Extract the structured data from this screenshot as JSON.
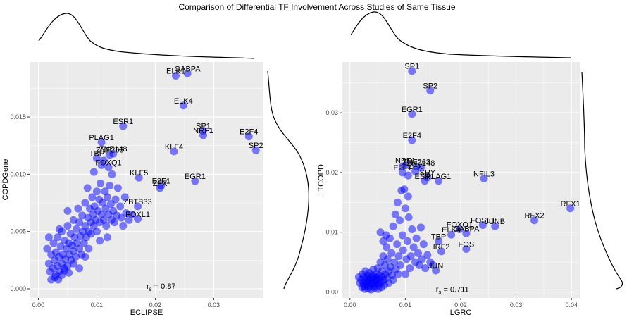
{
  "title": "Comparison of Differential TF Involvement Across Studies of Same Tissue",
  "colors": {
    "panel": "#ebebeb",
    "grid": "#ffffff",
    "point": "#0000ff"
  },
  "chart_data": [
    {
      "type": "scatter",
      "xlabel": "ECLIPSE",
      "ylabel": "COPDGene",
      "xlim": [
        -0.0015,
        0.0385
      ],
      "ylim": [
        -0.0008,
        0.0198
      ],
      "xticks": [
        0.0,
        0.01,
        0.02,
        0.03
      ],
      "xtick_labels": [
        "0.00",
        "0.01",
        "0.02",
        "0.03"
      ],
      "yticks": [
        0.0,
        0.005,
        0.01,
        0.015
      ],
      "ytick_labels": [
        "0.000",
        "0.005",
        "0.010",
        "0.015"
      ],
      "grid": true,
      "marginal_density": true,
      "annotation": {
        "prefix": "r",
        "subscript": "s",
        "text": " = 0.87",
        "x": 0.021,
        "y": 0.0
      },
      "labeled_points": [
        {
          "label": "GABPA",
          "x": 0.0255,
          "y": 0.0188
        },
        {
          "label": "ELK1",
          "x": 0.0235,
          "y": 0.0186
        },
        {
          "label": "ELK4",
          "x": 0.0248,
          "y": 0.016
        },
        {
          "label": "ESR1",
          "x": 0.0145,
          "y": 0.0142
        },
        {
          "label": "SP1",
          "x": 0.0282,
          "y": 0.0138
        },
        {
          "label": "NRF1",
          "x": 0.0282,
          "y": 0.0134
        },
        {
          "label": "E2F4",
          "x": 0.036,
          "y": 0.0133
        },
        {
          "label": "SP2",
          "x": 0.0372,
          "y": 0.0121
        },
        {
          "label": "KLF4",
          "x": 0.0232,
          "y": 0.012
        },
        {
          "label": "PLAG1",
          "x": 0.0108,
          "y": 0.0128
        },
        {
          "label": "ZNF263",
          "x": 0.0122,
          "y": 0.0117
        },
        {
          "label": "ZNF148",
          "x": 0.0128,
          "y": 0.0118
        },
        {
          "label": "TBP",
          "x": 0.01,
          "y": 0.0114
        },
        {
          "label": "FOXQ1",
          "x": 0.012,
          "y": 0.0106
        },
        {
          "label": "KLF5",
          "x": 0.0172,
          "y": 0.0097
        },
        {
          "label": "E2F1",
          "x": 0.021,
          "y": 0.009
        },
        {
          "label": "ZFX",
          "x": 0.0208,
          "y": 0.0088
        },
        {
          "label": "EGR1",
          "x": 0.0268,
          "y": 0.0094
        },
        {
          "label": "ZBTB33",
          "x": 0.017,
          "y": 0.0072
        },
        {
          "label": "FOXL1",
          "x": 0.017,
          "y": 0.0061
        }
      ],
      "other_points": [
        [
          0.0015,
          0.0035
        ],
        [
          0.0018,
          0.0022
        ],
        [
          0.002,
          0.0015
        ],
        [
          0.0022,
          0.003
        ],
        [
          0.0025,
          0.0018
        ],
        [
          0.0026,
          0.004
        ],
        [
          0.0028,
          0.0025
        ],
        [
          0.003,
          0.0012
        ],
        [
          0.003,
          0.0032
        ],
        [
          0.0032,
          0.002
        ],
        [
          0.0033,
          0.0045
        ],
        [
          0.0035,
          0.0028
        ],
        [
          0.0036,
          0.0015
        ],
        [
          0.0038,
          0.0037
        ],
        [
          0.004,
          0.0022
        ],
        [
          0.004,
          0.005
        ],
        [
          0.0042,
          0.003
        ],
        [
          0.0044,
          0.0018
        ],
        [
          0.0045,
          0.0042
        ],
        [
          0.0046,
          0.0026
        ],
        [
          0.0048,
          0.0035
        ],
        [
          0.005,
          0.0055
        ],
        [
          0.005,
          0.002
        ],
        [
          0.0052,
          0.004
        ],
        [
          0.0053,
          0.003
        ],
        [
          0.0055,
          0.0048
        ],
        [
          0.0056,
          0.0025
        ],
        [
          0.0058,
          0.0038
        ],
        [
          0.006,
          0.006
        ],
        [
          0.006,
          0.0033
        ],
        [
          0.0062,
          0.0045
        ],
        [
          0.0064,
          0.0028
        ],
        [
          0.0065,
          0.0052
        ],
        [
          0.0066,
          0.004
        ],
        [
          0.0068,
          0.007
        ],
        [
          0.007,
          0.0035
        ],
        [
          0.007,
          0.0058
        ],
        [
          0.0072,
          0.0046
        ],
        [
          0.0074,
          0.003
        ],
        [
          0.0075,
          0.0064
        ],
        [
          0.0076,
          0.005
        ],
        [
          0.0078,
          0.004
        ],
        [
          0.008,
          0.0075
        ],
        [
          0.008,
          0.0055
        ],
        [
          0.0082,
          0.0045
        ],
        [
          0.0084,
          0.0088
        ],
        [
          0.0085,
          0.0062
        ],
        [
          0.0086,
          0.005
        ],
        [
          0.0088,
          0.007
        ],
        [
          0.009,
          0.0058
        ],
        [
          0.009,
          0.0048
        ],
        [
          0.0092,
          0.008
        ],
        [
          0.0094,
          0.0065
        ],
        [
          0.0095,
          0.0055
        ],
        [
          0.0096,
          0.0072
        ],
        [
          0.0098,
          0.006
        ],
        [
          0.01,
          0.0085
        ],
        [
          0.01,
          0.005
        ],
        [
          0.0102,
          0.0068
        ],
        [
          0.0104,
          0.0078
        ],
        [
          0.0105,
          0.0058
        ],
        [
          0.0106,
          0.0092
        ],
        [
          0.0108,
          0.0065
        ],
        [
          0.011,
          0.0075
        ],
        [
          0.0112,
          0.006
        ],
        [
          0.0114,
          0.0085
        ],
        [
          0.0115,
          0.007
        ],
        [
          0.0116,
          0.0055
        ],
        [
          0.0118,
          0.008
        ],
        [
          0.012,
          0.0065
        ],
        [
          0.0122,
          0.009
        ],
        [
          0.0124,
          0.0074
        ],
        [
          0.0125,
          0.006
        ],
        [
          0.0126,
          0.01
        ],
        [
          0.0128,
          0.0068
        ],
        [
          0.013,
          0.0058
        ],
        [
          0.0132,
          0.0078
        ],
        [
          0.0134,
          0.0064
        ],
        [
          0.0136,
          0.0088
        ],
        [
          0.014,
          0.0072
        ],
        [
          0.0142,
          0.0062
        ],
        [
          0.0145,
          0.0055
        ],
        [
          0.0148,
          0.008
        ],
        [
          0.015,
          0.0066
        ],
        [
          0.0155,
          0.006
        ],
        [
          0.016,
          0.0065
        ],
        [
          0.0028,
          0.001
        ],
        [
          0.0034,
          0.0008
        ],
        [
          0.004,
          0.0012
        ],
        [
          0.0045,
          0.0016
        ],
        [
          0.0022,
          0.0008
        ],
        [
          0.0052,
          0.0014
        ],
        [
          0.0036,
          0.0052
        ],
        [
          0.006,
          0.0022
        ],
        [
          0.007,
          0.0018
        ],
        [
          0.0018,
          0.0045
        ],
        [
          0.005,
          0.0068
        ],
        [
          0.008,
          0.0028
        ],
        [
          0.0086,
          0.0035
        ],
        [
          0.0105,
          0.0042
        ],
        [
          0.0118,
          0.0045
        ],
        [
          0.0095,
          0.0102
        ],
        [
          0.0108,
          0.0108
        ],
        [
          0.0112,
          0.0112
        ]
      ]
    },
    {
      "type": "scatter",
      "xlabel": "LGRC",
      "ylabel": "LTCOPD",
      "xlim": [
        -0.0015,
        0.0415
      ],
      "ylim": [
        -0.001,
        0.0385
      ],
      "xticks": [
        0.0,
        0.01,
        0.02,
        0.03,
        0.04
      ],
      "xtick_labels": [
        "0.00",
        "0.01",
        "0.02",
        "0.03",
        "0.04"
      ],
      "yticks": [
        0.0,
        0.01,
        0.02,
        0.03
      ],
      "ytick_labels": [
        "0.00",
        "0.01",
        "0.02",
        "0.03"
      ],
      "grid": true,
      "marginal_density": true,
      "annotation": {
        "prefix": "r",
        "subscript": "s",
        "text": " = 0.711",
        "x": 0.0185,
        "y": 0.0
      },
      "labeled_points": [
        {
          "label": "SP1",
          "x": 0.0112,
          "y": 0.037
        },
        {
          "label": "SP2",
          "x": 0.0145,
          "y": 0.0337
        },
        {
          "label": "EGR1",
          "x": 0.0112,
          "y": 0.0298
        },
        {
          "label": "E2F4",
          "x": 0.0112,
          "y": 0.0254
        },
        {
          "label": "NRF1",
          "x": 0.01,
          "y": 0.0212
        },
        {
          "label": "ZNF263",
          "x": 0.012,
          "y": 0.021
        },
        {
          "label": "ZNF148",
          "x": 0.0128,
          "y": 0.0208
        },
        {
          "label": "ZFX",
          "x": 0.0118,
          "y": 0.0202
        },
        {
          "label": "E2F1",
          "x": 0.0095,
          "y": 0.02
        },
        {
          "label": "SRY",
          "x": 0.014,
          "y": 0.0192
        },
        {
          "label": "ESR1",
          "x": 0.0135,
          "y": 0.0186
        },
        {
          "label": "PLAG1",
          "x": 0.016,
          "y": 0.0186
        },
        {
          "label": "NFIL3",
          "x": 0.0242,
          "y": 0.019
        },
        {
          "label": "RFX1",
          "x": 0.0398,
          "y": 0.014
        },
        {
          "label": "RFX2",
          "x": 0.0333,
          "y": 0.012
        },
        {
          "label": "FOSL1",
          "x": 0.024,
          "y": 0.0112
        },
        {
          "label": "JUNB",
          "x": 0.0262,
          "y": 0.011
        },
        {
          "label": "FOXQ1",
          "x": 0.0198,
          "y": 0.0105
        },
        {
          "label": "ELK4",
          "x": 0.0183,
          "y": 0.0096
        },
        {
          "label": "GABPA",
          "x": 0.021,
          "y": 0.0098
        },
        {
          "label": "TBP",
          "x": 0.016,
          "y": 0.0085
        },
        {
          "label": "IRF2",
          "x": 0.0165,
          "y": 0.0068
        },
        {
          "label": "FOS",
          "x": 0.021,
          "y": 0.0072
        },
        {
          "label": "JUN",
          "x": 0.0155,
          "y": 0.0036
        }
      ],
      "other_points": [
        [
          0.002,
          0.002
        ],
        [
          0.0022,
          0.003
        ],
        [
          0.0024,
          0.0015
        ],
        [
          0.0025,
          0.0025
        ],
        [
          0.0026,
          0.001
        ],
        [
          0.0028,
          0.0035
        ],
        [
          0.0028,
          0.0018
        ],
        [
          0.003,
          0.0022
        ],
        [
          0.003,
          0.0012
        ],
        [
          0.0032,
          0.0028
        ],
        [
          0.0032,
          0.0016
        ],
        [
          0.0034,
          0.002
        ],
        [
          0.0034,
          0.001
        ],
        [
          0.0035,
          0.0032
        ],
        [
          0.0036,
          0.0024
        ],
        [
          0.0037,
          0.0014
        ],
        [
          0.0038,
          0.0018
        ],
        [
          0.004,
          0.0028
        ],
        [
          0.004,
          0.0012
        ],
        [
          0.0041,
          0.0022
        ],
        [
          0.0042,
          0.0038
        ],
        [
          0.0043,
          0.0016
        ],
        [
          0.0044,
          0.0026
        ],
        [
          0.0045,
          0.001
        ],
        [
          0.0046,
          0.002
        ],
        [
          0.0047,
          0.003
        ],
        [
          0.0048,
          0.0014
        ],
        [
          0.0049,
          0.0024
        ],
        [
          0.005,
          0.004
        ],
        [
          0.005,
          0.0018
        ],
        [
          0.0052,
          0.0012
        ],
        [
          0.0053,
          0.0028
        ],
        [
          0.0054,
          0.0022
        ],
        [
          0.0055,
          0.005
        ],
        [
          0.0056,
          0.0016
        ],
        [
          0.0058,
          0.0035
        ],
        [
          0.0059,
          0.0025
        ],
        [
          0.006,
          0.006
        ],
        [
          0.0061,
          0.002
        ],
        [
          0.0063,
          0.0045
        ],
        [
          0.0064,
          0.003
        ],
        [
          0.0066,
          0.0075
        ],
        [
          0.0067,
          0.0024
        ],
        [
          0.0068,
          0.0055
        ],
        [
          0.007,
          0.0035
        ],
        [
          0.0072,
          0.009
        ],
        [
          0.0073,
          0.0042
        ],
        [
          0.0075,
          0.0065
        ],
        [
          0.0076,
          0.0028
        ],
        [
          0.0078,
          0.011
        ],
        [
          0.008,
          0.005
        ],
        [
          0.0082,
          0.013
        ],
        [
          0.0083,
          0.0038
        ],
        [
          0.0085,
          0.008
        ],
        [
          0.0086,
          0.015
        ],
        [
          0.0088,
          0.006
        ],
        [
          0.009,
          0.012
        ],
        [
          0.0091,
          0.0045
        ],
        [
          0.0093,
          0.017
        ],
        [
          0.0095,
          0.0095
        ],
        [
          0.0096,
          0.007
        ],
        [
          0.0098,
          0.0172
        ],
        [
          0.01,
          0.014
        ],
        [
          0.0102,
          0.0055
        ],
        [
          0.0104,
          0.0085
        ],
        [
          0.0106,
          0.0125
        ],
        [
          0.0108,
          0.004
        ],
        [
          0.011,
          0.006
        ],
        [
          0.0112,
          0.0105
        ],
        [
          0.0115,
          0.0075
        ],
        [
          0.0118,
          0.005
        ],
        [
          0.012,
          0.009
        ],
        [
          0.0123,
          0.0065
        ],
        [
          0.0125,
          0.0045
        ],
        [
          0.0128,
          0.0108
        ],
        [
          0.013,
          0.0055
        ],
        [
          0.0133,
          0.008
        ],
        [
          0.0136,
          0.004
        ],
        [
          0.014,
          0.0062
        ],
        [
          0.0145,
          0.005
        ],
        [
          0.015,
          0.0045
        ],
        [
          0.0018,
          0.0015
        ],
        [
          0.0022,
          0.0008
        ],
        [
          0.0027,
          0.0005
        ],
        [
          0.0033,
          0.0006
        ],
        [
          0.0038,
          0.0004
        ],
        [
          0.0044,
          0.0007
        ],
        [
          0.0051,
          0.0005
        ],
        [
          0.0057,
          0.0008
        ],
        [
          0.0016,
          0.0025
        ],
        [
          0.0062,
          0.0012
        ],
        [
          0.007,
          0.0015
        ],
        [
          0.0078,
          0.002
        ],
        [
          0.0087,
          0.003
        ],
        [
          0.01,
          0.003
        ],
        [
          0.0055,
          0.01
        ],
        [
          0.006,
          0.0085
        ],
        [
          0.0065,
          0.0095
        ],
        [
          0.0105,
          0.016
        ],
        [
          0.0095,
          0.021
        ],
        [
          0.0105,
          0.0195
        ]
      ]
    }
  ]
}
